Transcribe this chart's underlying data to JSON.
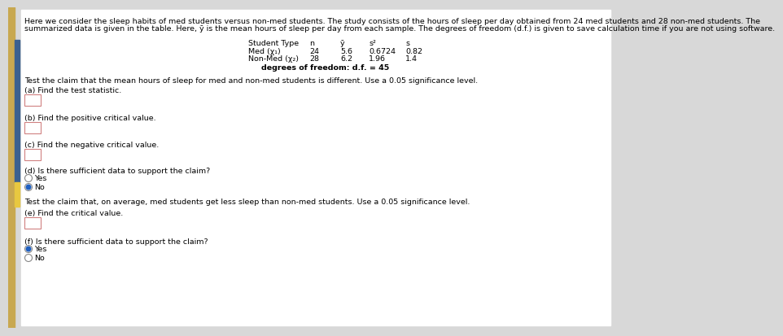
{
  "bg_color": "#d8d8d8",
  "content_bg": "#e8e8e8",
  "white_area": "#ffffff",
  "intro_line1": "Here we consider the sleep habits of med students versus non-med students. The study consists of the hours of sleep per day obtained from 24 med students and 28 non-med students. The",
  "intro_line2": "summarized data is given in the table. Here, ȳ is the mean hours of sleep per day from each sample. The degrees of freedom (d.f.) is given to save calculation time if you are not using software.",
  "table_header_cols": [
    "Student Type",
    "n",
    "ȳ",
    "s²",
    "s"
  ],
  "table_row1": [
    "Med (χ₁)",
    "24",
    "5.6",
    "0.6724",
    "0.82"
  ],
  "table_row2": [
    "Non-Med (χ₂)",
    "28",
    "6.2",
    "1.96",
    "1.4"
  ],
  "df_text": "degrees of freedom: d.f. = 45",
  "claim1_text": "Test the claim that the mean hours of sleep for med and non-med students is different. Use a 0.05 significance level.",
  "part_a_label": "(a) Find the test statistic.",
  "part_b_label": "(b) Find the positive critical value.",
  "part_c_label": "(c) Find the negative critical value.",
  "part_d_label": "(d) Is there sufficient data to support the claim?",
  "part_d_yes": "Yes",
  "part_d_no": "No",
  "part_d_selected": "No",
  "claim2_text": "Test the claim that, on average, med students get less sleep than non-med students. Use a 0.05 significance level.",
  "part_e_label": "(e) Find the critical value.",
  "part_f_label": "(f) Is there sufficient data to support the claim?",
  "part_f_yes": "Yes",
  "part_f_no": "No",
  "part_f_selected": "Yes",
  "left_bar1_color": "#c8a850",
  "left_bar2_color": "#3a6090",
  "left_bar3_color": "#e8c840",
  "box_edge_color": "#d08080",
  "radio_fill_color": "#2060c0"
}
